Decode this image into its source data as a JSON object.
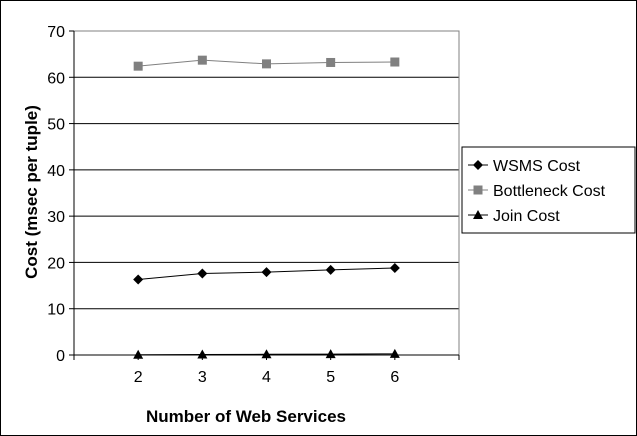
{
  "chart_data": {
    "type": "line",
    "title": "",
    "xlabel": "Number of Web Services",
    "ylabel": "Cost (msec per tuple)",
    "x": [
      2,
      3,
      4,
      5,
      6
    ],
    "ylim": [
      0,
      70
    ],
    "yticks": [
      0,
      10,
      20,
      30,
      40,
      50,
      60,
      70
    ],
    "grid": "horizontal",
    "legend": "right",
    "series": [
      {
        "name": "WSMS Cost",
        "values": [
          16.3,
          17.6,
          17.9,
          18.4,
          18.8
        ],
        "marker": "diamond",
        "color": "#000000"
      },
      {
        "name": "Bottleneck Cost",
        "values": [
          62.4,
          63.7,
          62.9,
          63.2,
          63.3
        ],
        "marker": "square",
        "color": "#808080"
      },
      {
        "name": "Join Cost",
        "values": [
          0.05,
          0.1,
          0.15,
          0.2,
          0.25
        ],
        "marker": "triangle",
        "color": "#000000"
      }
    ]
  }
}
